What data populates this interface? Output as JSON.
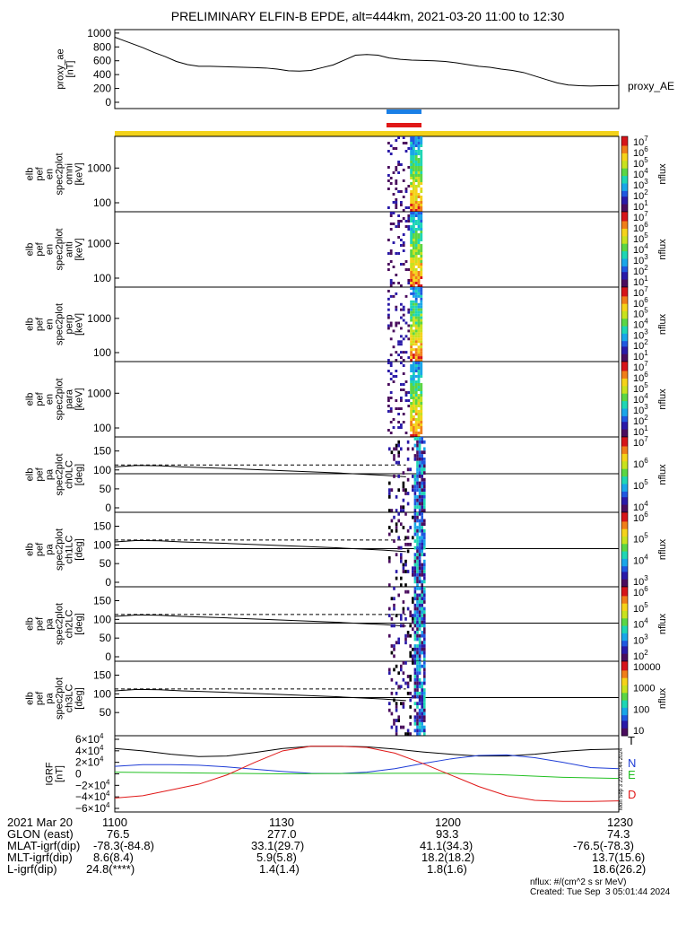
{
  "title": "PRELIMINARY ELFIN-B EPDE, alt=444km, 2021-03-20 11:00 to 12:30",
  "colors": {
    "blue_bar": "#1a7fe6",
    "red_bar": "#e01818",
    "yellow_strip": "#f2d21a",
    "N": "#1e3cd6",
    "E": "#22c022",
    "D": "#e01818"
  },
  "proxy_ae": {
    "ylabel": "proxy_ae",
    "yunit": "[nT]",
    "yticks": [
      "1000",
      "800",
      "600",
      "400",
      "200",
      "0"
    ],
    "label": "proxy_AE",
    "ylim": [
      0,
      1050
    ],
    "t": [
      0,
      1,
      3,
      5,
      7,
      9,
      11,
      13,
      15,
      17,
      19,
      21,
      23,
      25,
      27,
      29,
      31,
      33,
      35,
      37,
      39,
      41,
      43,
      45,
      47,
      49,
      51,
      53,
      55,
      57,
      59,
      61,
      63,
      65,
      67,
      69,
      71,
      73,
      75,
      77,
      79,
      81,
      83,
      85,
      87,
      89,
      90
    ],
    "values": [
      940,
      910,
      850,
      790,
      720,
      660,
      590,
      545,
      520,
      520,
      515,
      510,
      505,
      500,
      495,
      480,
      455,
      450,
      460,
      500,
      540,
      610,
      680,
      690,
      680,
      640,
      620,
      610,
      605,
      600,
      590,
      570,
      545,
      520,
      505,
      480,
      460,
      430,
      380,
      330,
      280,
      250,
      240,
      235,
      240,
      240,
      245
    ]
  },
  "spectrograms": [
    {
      "lines": [
        "elb",
        "pef",
        "en",
        "spec2plot",
        "omni",
        "[keV]"
      ],
      "yticks": [
        "1000",
        "100"
      ],
      "cbar_ticks": [
        "10",
        "10",
        "10",
        "10",
        "10",
        "10",
        "10"
      ],
      "cbar_exps": [
        "7",
        "6",
        "5",
        "4",
        "3",
        "2",
        "1"
      ],
      "cbar_label": "nflux"
    },
    {
      "lines": [
        "elb",
        "pef",
        "en",
        "spec2plot",
        "anti",
        "[keV]"
      ],
      "yticks": [
        "1000",
        "100"
      ],
      "cbar_ticks": [
        "10",
        "10",
        "10",
        "10",
        "10",
        "10",
        "10"
      ],
      "cbar_exps": [
        "7",
        "6",
        "5",
        "4",
        "3",
        "2",
        "1"
      ],
      "cbar_label": "nflux"
    },
    {
      "lines": [
        "elb",
        "pef",
        "en",
        "spec2plot",
        "perp",
        "[keV]"
      ],
      "yticks": [
        "1000",
        "100"
      ],
      "cbar_ticks": [
        "10",
        "10",
        "10",
        "10",
        "10",
        "10",
        "10"
      ],
      "cbar_exps": [
        "7",
        "6",
        "5",
        "4",
        "3",
        "2",
        "1"
      ],
      "cbar_label": "nflux"
    },
    {
      "lines": [
        "elb",
        "pef",
        "en",
        "spec2plot",
        "para",
        "[keV]"
      ],
      "yticks": [
        "1000",
        "100"
      ],
      "cbar_ticks": [
        "10",
        "10",
        "10",
        "10",
        "10",
        "10",
        "10"
      ],
      "cbar_exps": [
        "7",
        "6",
        "5",
        "4",
        "3",
        "2",
        "1"
      ],
      "cbar_label": "nflux"
    }
  ],
  "pitch_panels": [
    {
      "lines": [
        "elb",
        "pef",
        "pa",
        "spec2plot",
        "ch0LC",
        "[deg]"
      ],
      "yticks": [
        "150",
        "100",
        "50",
        "0"
      ],
      "cbar_ticks": [
        "10",
        "10",
        "10",
        "10"
      ],
      "cbar_exps": [
        "7",
        "6",
        "5",
        "4"
      ],
      "cbar_label": "nflux"
    },
    {
      "lines": [
        "elb",
        "pef",
        "pa",
        "spec2plot",
        "ch1LC",
        "[deg]"
      ],
      "yticks": [
        "150",
        "100",
        "50",
        "0"
      ],
      "cbar_ticks": [
        "10",
        "10",
        "10",
        "10"
      ],
      "cbar_exps": [
        "6",
        "5",
        "4",
        "3"
      ],
      "cbar_label": "nflux"
    },
    {
      "lines": [
        "elb",
        "pef",
        "pa",
        "spec2plot",
        "ch2LC",
        "[deg]"
      ],
      "yticks": [
        "150",
        "100",
        "50",
        "0"
      ],
      "cbar_ticks": [
        "10",
        "10",
        "10",
        "10",
        "10"
      ],
      "cbar_exps": [
        "6",
        "5",
        "4",
        "3",
        "2"
      ],
      "cbar_label": "nflux"
    },
    {
      "lines": [
        "elb",
        "pef",
        "pa",
        "spec2plot",
        "ch3LC",
        "[deg]"
      ],
      "yticks": [
        "150",
        "100",
        "50"
      ],
      "cbar_ticks": [
        "10000",
        "1000",
        "100",
        "10"
      ],
      "cbar_exps": [
        "",
        "",
        "",
        ""
      ],
      "cbar_label": "nflux"
    }
  ],
  "igrf": {
    "lines": [
      "IGRF",
      "[nT]"
    ],
    "yticks": [
      "6×10",
      "4×10",
      "2×10",
      "0",
      "−2×10",
      "−4×10",
      "−6×10"
    ],
    "yexps": [
      "4",
      "4",
      "4",
      "",
      "4",
      "4",
      "4"
    ],
    "labels": {
      "T": "T",
      "N": "N",
      "E": "E",
      "D": "D"
    },
    "ylim": [
      -60000,
      60000
    ],
    "stamp": "Mon Sep  3 22:01:44 2024",
    "series": [
      {
        "name": "T",
        "t": [
          0,
          5,
          10,
          15,
          20,
          25,
          30,
          35,
          40,
          45,
          50,
          55,
          60,
          65,
          70,
          75,
          80,
          85,
          90
        ],
        "values": [
          44000,
          40000,
          34000,
          30000,
          31000,
          37000,
          44000,
          48000,
          48000,
          47000,
          43000,
          38000,
          34000,
          31000,
          31000,
          34000,
          39000,
          42000,
          43000
        ]
      },
      {
        "name": "N",
        "t": [
          0,
          5,
          10,
          15,
          20,
          25,
          30,
          35,
          40,
          45,
          50,
          55,
          60,
          65,
          70,
          75,
          80,
          85,
          90
        ],
        "values": [
          13000,
          16000,
          16000,
          15000,
          12000,
          8000,
          4000,
          1000,
          500,
          3000,
          9000,
          18000,
          26000,
          32000,
          33000,
          28000,
          20000,
          11000,
          9000
        ]
      },
      {
        "name": "E",
        "t": [
          0,
          10,
          20,
          30,
          40,
          50,
          60,
          70,
          80,
          90
        ],
        "values": [
          3000,
          2000,
          1000,
          0,
          500,
          1000,
          1000,
          -2000,
          -6000,
          -8000
        ]
      },
      {
        "name": "D",
        "t": [
          0,
          5,
          10,
          15,
          20,
          25,
          30,
          35,
          40,
          45,
          50,
          55,
          60,
          65,
          70,
          75,
          80,
          85,
          90
        ],
        "values": [
          -42000,
          -38000,
          -28000,
          -18000,
          -2000,
          20000,
          40000,
          48000,
          48000,
          46000,
          36000,
          18000,
          -2000,
          -22000,
          -38000,
          -46000,
          -48000,
          -48000,
          -47000
        ]
      }
    ]
  },
  "footer": {
    "rows": [
      [
        "2021 Mar 20",
        "1100",
        "1130",
        "1200",
        "1230"
      ],
      [
        "GLON (east)",
        "76.5",
        "277.0",
        "93.3",
        "74.3"
      ],
      [
        "MLAT-igrf(dip)",
        "-78.3(-84.8)",
        "33.1(29.7)",
        "41.1(34.3)",
        "-76.5(-78.3)"
      ],
      [
        "MLT-igrf(dip)",
        "8.6(8.4)",
        "5.9(5.8)",
        "18.2(18.2)",
        "13.7(15.6)"
      ],
      [
        "L-igrf(dip)",
        "24.8(****)",
        "1.4(1.4)",
        "1.8(1.6)",
        "18.6(26.2)"
      ]
    ],
    "nflux_note": "nflux: #/(cm^2 s sr MeV)",
    "created": "Created: Tue Sep  3 05:01:44 2024"
  }
}
